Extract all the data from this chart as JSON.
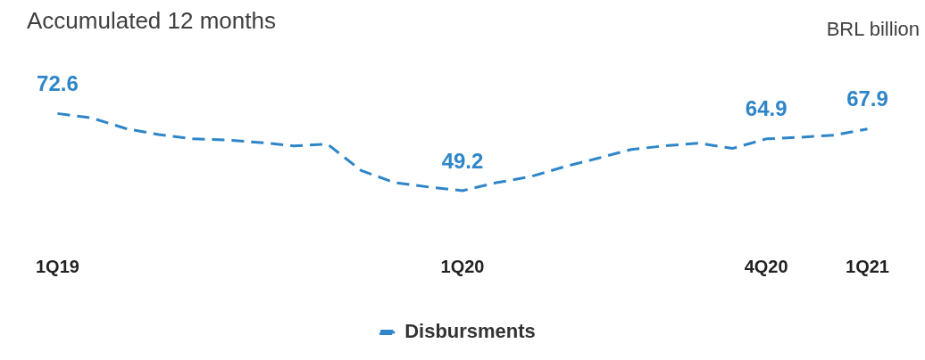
{
  "chart_data": {
    "type": "line",
    "title": "Accumulated 12 months",
    "ylabel": "BRL billion",
    "categories": [
      "1Q19",
      null,
      null,
      null,
      null,
      null,
      null,
      null,
      null,
      null,
      null,
      null,
      "1Q20",
      null,
      null,
      null,
      null,
      null,
      null,
      null,
      null,
      "4Q20",
      null,
      null,
      "1Q21"
    ],
    "series": [
      {
        "name": "Disbursments",
        "color": "#2e86c8",
        "values": [
          72.6,
          71.3,
          68.1,
          66.2,
          64.9,
          64.6,
          63.8,
          62.8,
          63.3,
          55.3,
          51.6,
          50.3,
          49.2,
          51.6,
          53.4,
          56.4,
          59.0,
          61.7,
          62.8,
          63.6,
          62.0,
          64.9,
          65.4,
          66.0,
          67.9
        ],
        "value_labels": [
          "72.6",
          null,
          null,
          null,
          null,
          null,
          null,
          null,
          null,
          null,
          null,
          null,
          "49.2",
          null,
          null,
          null,
          null,
          null,
          null,
          null,
          null,
          "64.9",
          null,
          null,
          "67.9"
        ]
      }
    ],
    "legend": "bottom",
    "marker": "none",
    "line_style": "dashed",
    "grid": false
  }
}
